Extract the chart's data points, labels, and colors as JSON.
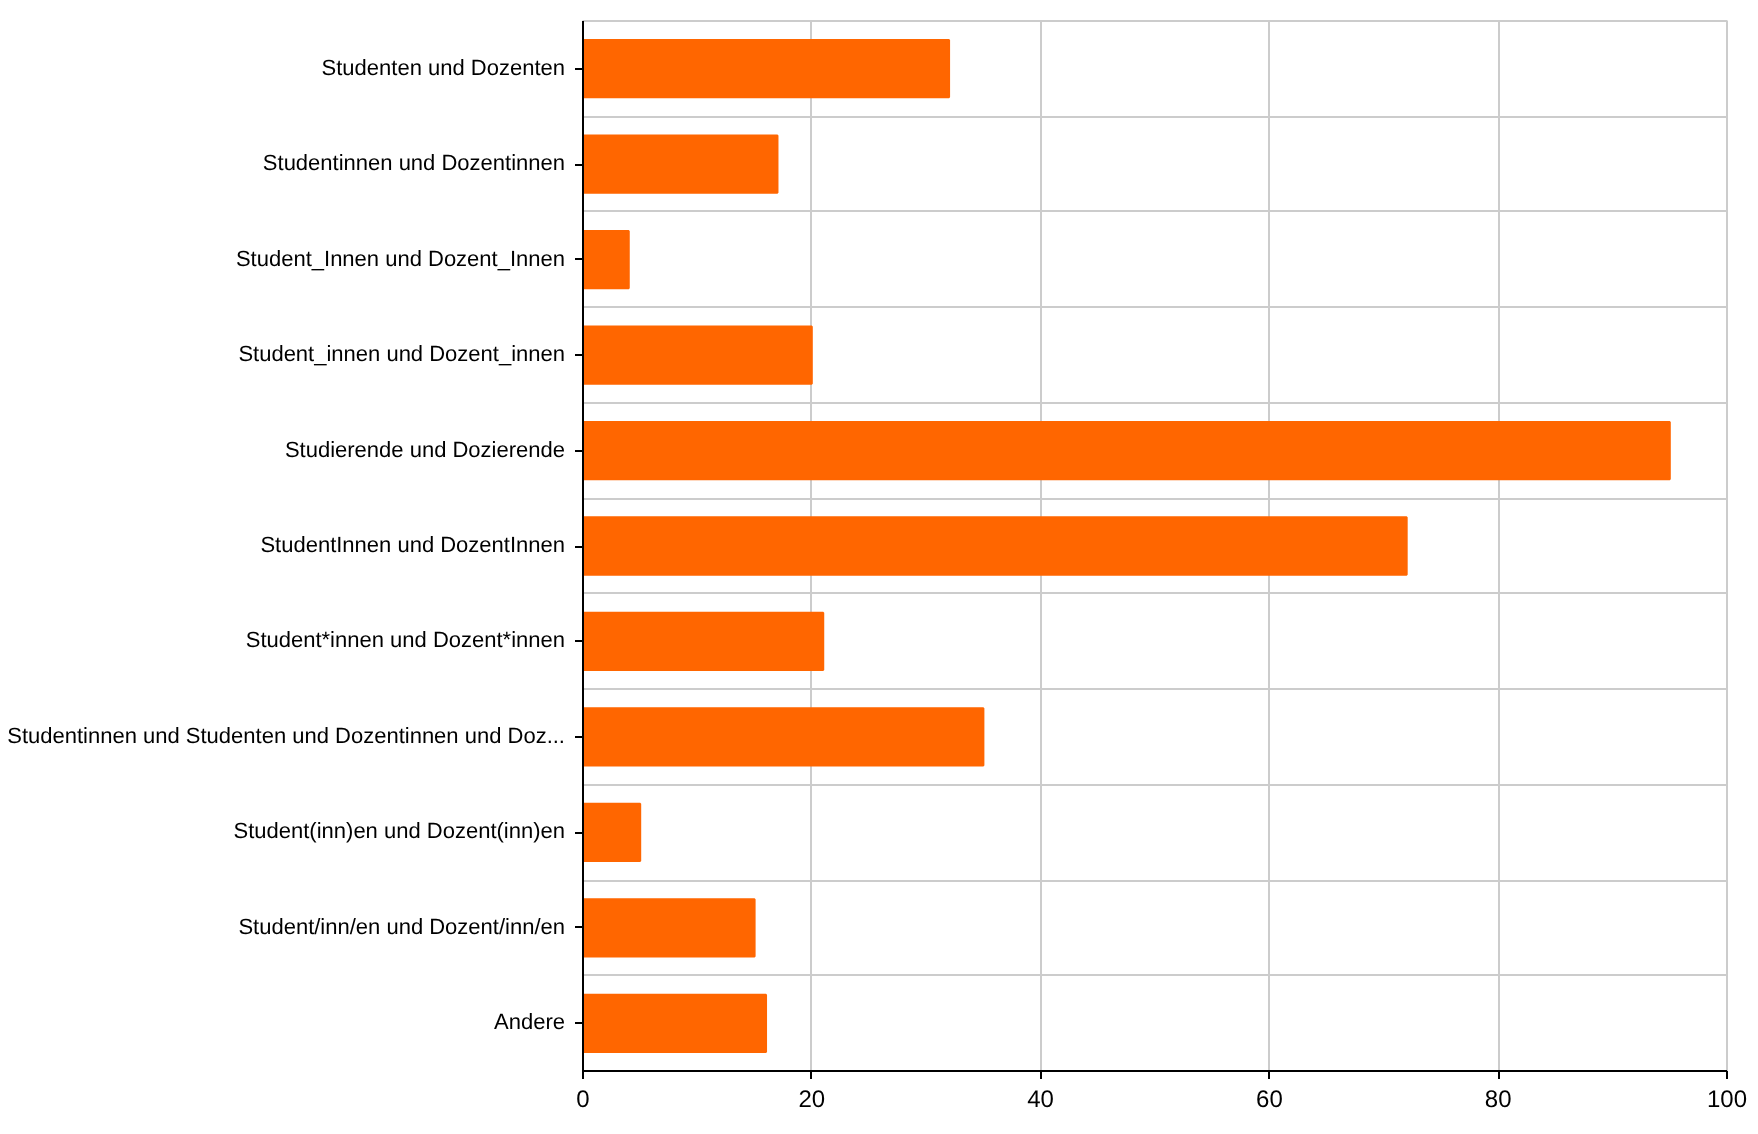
{
  "chart_data": {
    "type": "bar",
    "orientation": "horizontal",
    "categories": [
      "Studenten und Dozenten",
      "Studentinnen und Dozentinnen",
      "Student_Innen und Dozent_Innen",
      "Student_innen und Dozent_innen",
      "Studierende und Dozierende",
      "StudentInnen und DozentInnen",
      "Student*innen und Dozent*innen",
      "Studentinnen und Studenten und Dozentinnen und Doz...",
      "Student(inn)en und Dozent(inn)en",
      "Student/inn/en und Dozent/inn/en",
      "Andere"
    ],
    "values": [
      32,
      17,
      4,
      20,
      95,
      72,
      21,
      35,
      5,
      15,
      16
    ],
    "color": "#ff6600",
    "xlim": [
      0,
      100
    ],
    "xticks": [
      0,
      20,
      40,
      60,
      80,
      100
    ],
    "grid": true
  }
}
